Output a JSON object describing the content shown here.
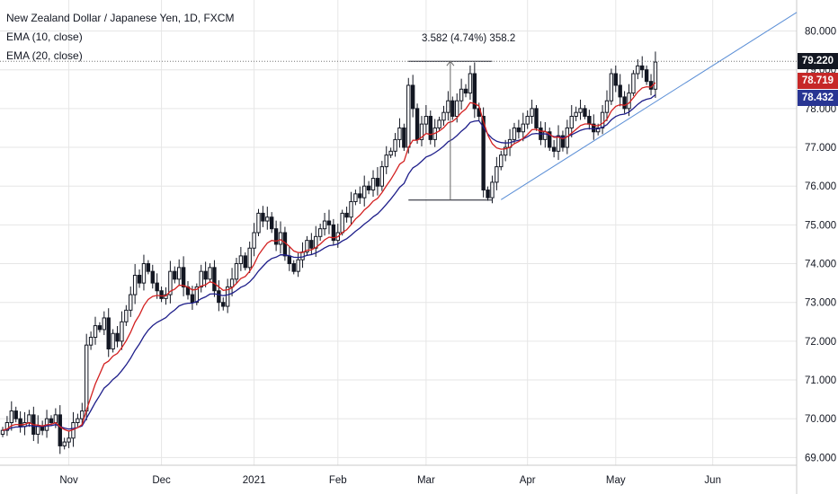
{
  "legend": {
    "symbol": "New Zealand Dollar / Japanese Yen, 1D, FXCM",
    "ema10": "EMA (10, close)",
    "ema20": "EMA (20, close)"
  },
  "measurement": {
    "label": "3.582 (4.74%) 358.2",
    "low": 75.64,
    "high": 79.22
  },
  "price_tags": {
    "last": "79.220",
    "ema10": "78.719",
    "ema20": "78.432"
  },
  "colors": {
    "up": "#131722",
    "down": "#131722",
    "ema10": "#d32020",
    "ema20": "#1e1e8a",
    "trendline": "#5b8fd6",
    "last_tag": "#131722",
    "ema10_tag": "#c62828",
    "ema20_tag": "#283593",
    "grid": "#e6e6e6"
  },
  "chart_data": {
    "type": "candlestick",
    "title": "New Zealand Dollar / Japanese Yen, 1D, FXCM",
    "ylim": [
      68.8,
      80.8
    ],
    "y_ticks": [
      "69.000",
      "70.000",
      "71.000",
      "72.000",
      "73.000",
      "74.000",
      "75.000",
      "76.000",
      "77.000",
      "78.000",
      "79.000",
      "80.000"
    ],
    "x_labels": [
      {
        "label": "Nov",
        "index": 15
      },
      {
        "label": "Dec",
        "index": 36
      },
      {
        "label": "2021",
        "index": 57
      },
      {
        "label": "Feb",
        "index": 76
      },
      {
        "label": "Mar",
        "index": 96
      },
      {
        "label": "Apr",
        "index": 119
      },
      {
        "label": "May",
        "index": 139
      },
      {
        "label": "Jun",
        "index": 161
      }
    ],
    "close": [
      69.7,
      69.9,
      70.2,
      70.0,
      69.8,
      69.9,
      70.1,
      69.6,
      69.8,
      69.7,
      70.0,
      69.9,
      70.1,
      69.3,
      69.4,
      69.5,
      69.9,
      70.0,
      70.2,
      71.9,
      72.1,
      72.4,
      72.3,
      72.6,
      71.8,
      72.2,
      72.0,
      72.5,
      72.8,
      73.2,
      73.7,
      73.5,
      74.0,
      73.8,
      73.5,
      73.3,
      73.1,
      73.2,
      73.8,
      73.6,
      73.9,
      73.4,
      73.2,
      73.0,
      73.4,
      73.8,
      73.6,
      73.9,
      73.3,
      73.0,
      72.9,
      73.4,
      73.6,
      74.0,
      74.2,
      73.9,
      74.4,
      74.8,
      75.3,
      75.1,
      75.2,
      74.9,
      74.5,
      74.8,
      74.2,
      74.0,
      73.8,
      74.1,
      74.3,
      74.6,
      74.4,
      74.7,
      74.9,
      75.1,
      75.0,
      74.6,
      74.8,
      75.3,
      75.2,
      75.6,
      75.8,
      75.7,
      76.0,
      75.9,
      76.2,
      76.0,
      76.5,
      76.8,
      76.9,
      77.2,
      77.5,
      77.0,
      78.6,
      78.0,
      77.2,
      77.6,
      77.8,
      77.2,
      77.5,
      77.7,
      77.9,
      78.2,
      77.8,
      78.2,
      78.5,
      78.4,
      78.9,
      78.0,
      77.8,
      75.9,
      75.7,
      76.1,
      76.5,
      76.8,
      77.0,
      77.2,
      77.5,
      77.4,
      77.6,
      77.8,
      78.0,
      77.5,
      77.2,
      77.4,
      77.0,
      76.9,
      77.3,
      77.0,
      77.5,
      77.8,
      77.9,
      78.0,
      77.8,
      77.6,
      77.4,
      77.5,
      77.9,
      78.2,
      78.9,
      78.6,
      78.3,
      78.0,
      78.4,
      78.9,
      79.1,
      79.0,
      78.7,
      78.5,
      79.2
    ],
    "ohlc_note": "open of each candle = previous close"
  }
}
